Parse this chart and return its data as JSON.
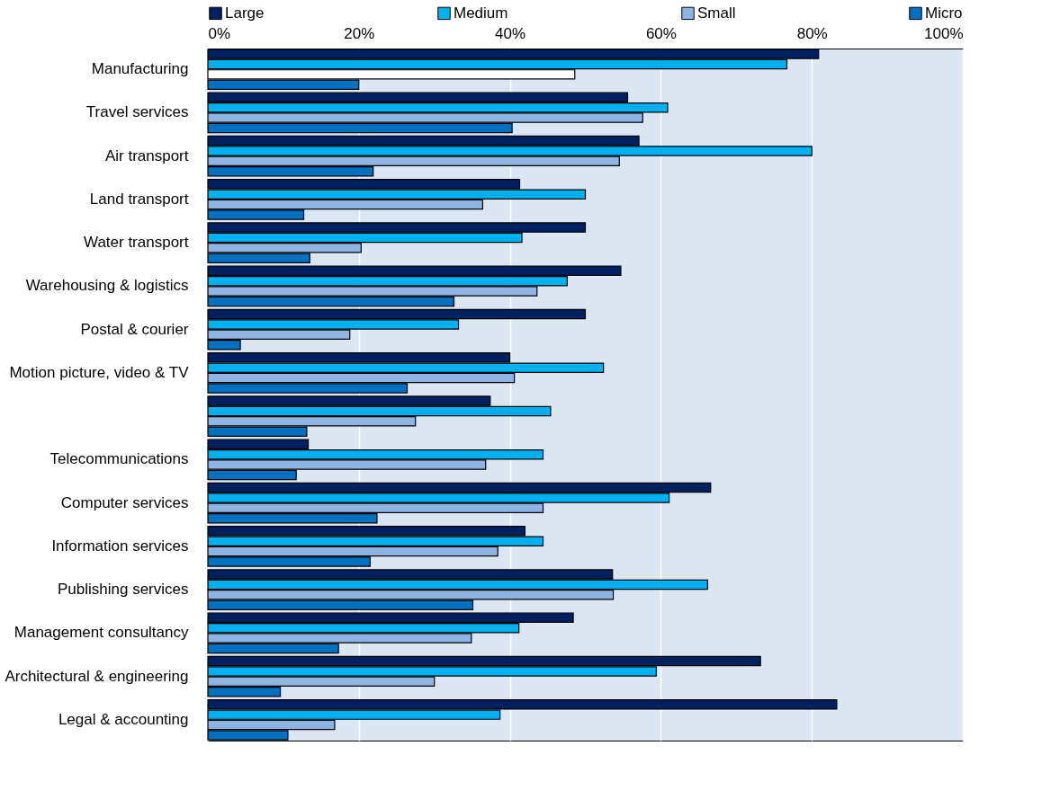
{
  "chart_data": {
    "type": "bar",
    "orientation": "horizontal",
    "categories": [
      "Manufacturing",
      "Travel services",
      "Air transport",
      "Land transport",
      "Water transport",
      "Warehousing & logistics",
      "Postal & courier ",
      "Motion picture, video & TV",
      null,
      "Telecommunications ",
      "Computer services",
      "Information services",
      "Publishing services",
      "Management consultancy ",
      "Architectural & engineering ",
      "Legal & accounting"
    ],
    "series": [
      {
        "name": "Large",
        "color": "#002060",
        "values": [
          80.9,
          55.6,
          57.1,
          41.3,
          50.0,
          54.7,
          50.0,
          40.0,
          37.4,
          13.3,
          66.6,
          42.0,
          53.6,
          48.4,
          73.2,
          83.3
        ]
      },
      {
        "name": "Medium",
        "color": "#00b0f0",
        "values": [
          76.7,
          60.9,
          80.0,
          50.0,
          41.6,
          47.6,
          33.2,
          52.4,
          45.4,
          44.4,
          61.1,
          44.4,
          66.2,
          41.2,
          59.4,
          38.7
        ]
      },
      {
        "name": "Small",
        "color": "#8db4e2",
        "colors": [
          "#ffffff",
          "#8db4e2",
          "#8db4e2",
          "#8db4e2",
          "#8db4e2",
          "#8db4e2",
          "#8db4e2",
          "#8db4e2",
          "#8db4e2",
          "#8db4e2",
          "#8db4e2",
          "#8db4e2",
          "#8db4e2",
          "#8db4e2",
          "#8db4e2",
          "#8db4e2"
        ],
        "values": [
          48.6,
          57.6,
          54.5,
          36.4,
          20.3,
          43.6,
          18.8,
          40.6,
          27.5,
          36.8,
          44.4,
          38.4,
          53.7,
          34.9,
          30.0,
          16.8
        ]
      },
      {
        "name": "Micro",
        "color": "#0070c0",
        "values": [
          20.0,
          40.3,
          21.9,
          12.7,
          13.5,
          32.6,
          4.3,
          26.4,
          13.1,
          11.7,
          22.4,
          21.5,
          35.1,
          17.3,
          9.6,
          10.6
        ]
      }
    ],
    "xlim": [
      0,
      100
    ],
    "xticks": [
      {
        "value": 0,
        "label": "0%"
      },
      {
        "value": 20,
        "label": "20%"
      },
      {
        "value": 40,
        "label": "40%"
      },
      {
        "value": 60,
        "label": "60%"
      },
      {
        "value": 80,
        "label": "80%"
      },
      {
        "value": 100,
        "label": "100%"
      }
    ],
    "grid": "x",
    "legend": "top"
  }
}
